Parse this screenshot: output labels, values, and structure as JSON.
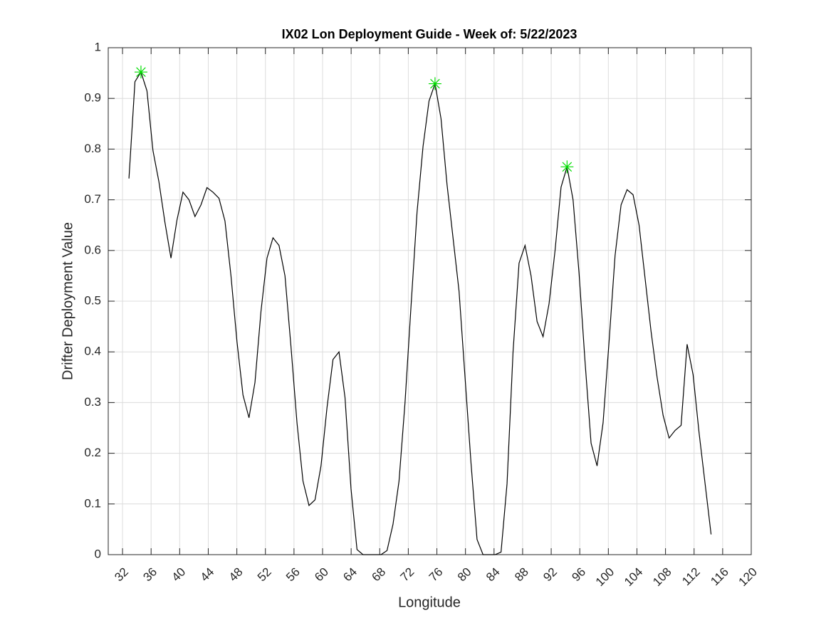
{
  "chart_data": {
    "type": "line",
    "title": "IX02 Lon Deployment Guide - Week of: 5/22/2023",
    "x_label": "Longitude",
    "y_label": "Drifter Deployment Value",
    "x": [
      32.9,
      33.74,
      34.58,
      35.42,
      36.26,
      37.1,
      37.94,
      38.78,
      39.62,
      40.46,
      41.3,
      42.14,
      42.98,
      43.82,
      44.66,
      45.5,
      46.34,
      47.18,
      48.02,
      48.86,
      49.7,
      50.54,
      51.38,
      52.22,
      53.06,
      53.9,
      54.74,
      55.58,
      56.42,
      57.26,
      58.1,
      58.94,
      59.78,
      60.62,
      61.46,
      62.3,
      63.14,
      63.98,
      64.82,
      65.66,
      66.5,
      67.34,
      68.18,
      69.02,
      69.86,
      70.7,
      71.54,
      72.38,
      73.22,
      74.06,
      74.9,
      75.74,
      76.58,
      77.42,
      78.26,
      79.1,
      79.94,
      80.78,
      81.62,
      82.46,
      83.3,
      84.14,
      84.98,
      85.82,
      86.66,
      87.5,
      88.34,
      89.18,
      90.02,
      90.86,
      91.7,
      92.54,
      93.38,
      94.22,
      95.06,
      95.9,
      96.74,
      97.58,
      98.42,
      99.26,
      100.1,
      100.94,
      101.78,
      102.62,
      103.46,
      104.3,
      105.14,
      105.98,
      106.82,
      107.66,
      108.5,
      109.34,
      110.18,
      111.02,
      111.86,
      112.7,
      113.54,
      114.38
    ],
    "series": [
      {
        "color": "#000000",
        "values": [
          0.742,
          0.933,
          0.952,
          0.915,
          0.797,
          0.735,
          0.655,
          0.585,
          0.66,
          0.715,
          0.7,
          0.667,
          0.69,
          0.724,
          0.715,
          0.703,
          0.658,
          0.55,
          0.42,
          0.315,
          0.27,
          0.34,
          0.48,
          0.585,
          0.625,
          0.61,
          0.55,
          0.41,
          0.26,
          0.145,
          0.097,
          0.108,
          0.175,
          0.29,
          0.385,
          0.4,
          0.31,
          0.13,
          0.01,
          0,
          0,
          0,
          0,
          0.008,
          0.06,
          0.145,
          0.3,
          0.49,
          0.675,
          0.805,
          0.895,
          0.929,
          0.86,
          0.73,
          0.625,
          0.52,
          0.35,
          0.18,
          0.03,
          0,
          0,
          0,
          0.005,
          0.14,
          0.4,
          0.575,
          0.61,
          0.55,
          0.46,
          0.43,
          0.495,
          0.6,
          0.725,
          0.765,
          0.7,
          0.555,
          0.38,
          0.22,
          0.175,
          0.26,
          0.42,
          0.59,
          0.69,
          0.72,
          0.71,
          0.65,
          0.545,
          0.44,
          0.35,
          0.275,
          0.23,
          0.245,
          0.255,
          0.415,
          0.355,
          0.24,
          0.14,
          0.04
        ]
      }
    ],
    "peaks": {
      "color": "#00dd00",
      "x": [
        34.58,
        75.74,
        94.22
      ],
      "values": [
        0.952,
        0.929,
        0.765
      ]
    },
    "xlim": [
      30,
      120
    ],
    "xticks": [
      32,
      36,
      40,
      44,
      48,
      52,
      56,
      60,
      64,
      68,
      72,
      76,
      80,
      84,
      88,
      92,
      96,
      100,
      104,
      108,
      112,
      116,
      120
    ],
    "ylim": [
      0,
      1
    ],
    "yticks": [
      0,
      0.1,
      0.2,
      0.3,
      0.4,
      0.5,
      0.6,
      0.7,
      0.8,
      0.9,
      1
    ],
    "grid": true
  }
}
